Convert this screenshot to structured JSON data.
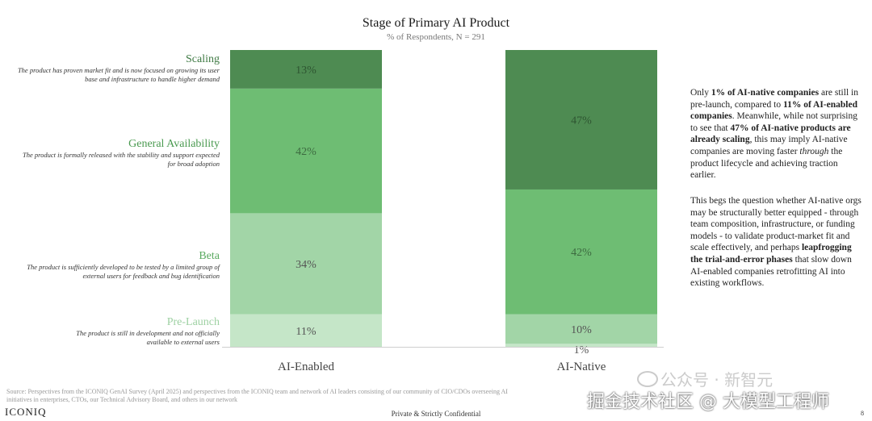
{
  "chart_data": {
    "type": "bar",
    "stacked": true,
    "title": "Stage of Primary AI Product",
    "subtitle": "% of Respondents, N = 291",
    "categories": [
      "AI-Enabled",
      "AI-Native"
    ],
    "ylim": [
      0,
      100
    ],
    "series": [
      {
        "name": "Pre-Launch",
        "values": [
          11,
          1
        ],
        "labels": [
          "11%",
          "1%"
        ],
        "color": "#c5e6c8"
      },
      {
        "name": "Beta",
        "values": [
          34,
          10
        ],
        "labels": [
          "34%",
          "10%"
        ],
        "color": "#a2d5a7"
      },
      {
        "name": "General Availability",
        "values": [
          42,
          42
        ],
        "labels": [
          "42%",
          "42%"
        ],
        "color": "#6ebd73"
      },
      {
        "name": "Scaling",
        "values": [
          13,
          47
        ],
        "labels": [
          "13%",
          "47%"
        ],
        "color": "#4e8b52"
      }
    ]
  },
  "stages": [
    {
      "name": "Scaling",
      "description": "The product has proven market fit and is now focused on growing its user base and infrastructure to handle higher demand",
      "color": "#3f7a44"
    },
    {
      "name": "General Availability",
      "description": "The product is formally released with the stability and support expected for broad adoption",
      "color": "#4a9a50"
    },
    {
      "name": "Beta",
      "description": "The product is sufficiently developed to be tested by a limited group of external users for feedback and bug identification",
      "color": "#5aaa60"
    },
    {
      "name": "Pre-Launch",
      "description": "The product is still in development and not officially available to external users",
      "color": "#9ed1a3"
    }
  ],
  "commentary": {
    "p1": [
      {
        "text": "Only ",
        "style": "normal"
      },
      {
        "text": "1% of AI-native companies",
        "style": "bold"
      },
      {
        "text": " are still in pre-launch, compared to ",
        "style": "normal"
      },
      {
        "text": "11% of AI-enabled companies",
        "style": "bold"
      },
      {
        "text": ". Meanwhile, while not surprising to see that ",
        "style": "normal"
      },
      {
        "text": "47% of AI-native products are already scaling",
        "style": "bold"
      },
      {
        "text": ", this may imply AI-native companies are moving faster ",
        "style": "normal"
      },
      {
        "text": "through",
        "style": "italic"
      },
      {
        "text": " the product lifecycle and achieving traction earlier.",
        "style": "normal"
      }
    ],
    "p2": [
      {
        "text": "This begs the question whether AI-native orgs may be structurally better equipped - through team composition, infrastructure, or funding models - to validate product-market fit and scale effectively, and perhaps ",
        "style": "normal"
      },
      {
        "text": "leapfrogging the trial-and-error phases",
        "style": "bold"
      },
      {
        "text": " that slow down AI-enabled companies retrofitting AI into existing workflows.",
        "style": "normal"
      }
    ]
  },
  "footer": {
    "source": "Source: Perspectives from the ICONIQ GenAI Survey (April 2025) and perspectives from the ICONIQ team and network of AI leaders consisting of our community of CIO/CDOs overseeing AI initiatives in enterprises, CTOs, our Technical Advisory Board, and others in our network",
    "logo": "ICONIQ",
    "confidential": "Private & Strictly Confidential",
    "page": "8"
  },
  "watermark": {
    "line1": "公众号 · 新智元",
    "line2": "掘金技术社区 @ 大模型工程师"
  }
}
